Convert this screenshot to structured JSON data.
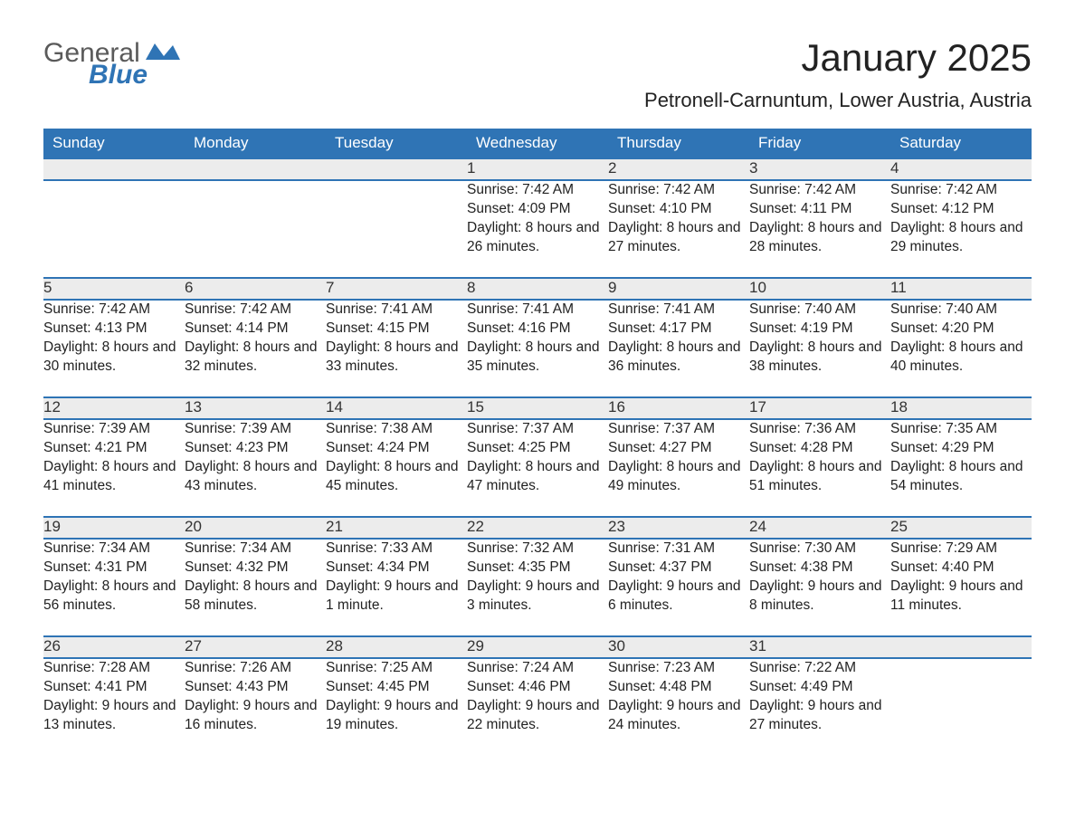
{
  "brand": {
    "general": "General",
    "blue": "Blue"
  },
  "title": "January 2025",
  "location": "Petronell-Carnuntum, Lower Austria, Austria",
  "colors": {
    "header_bg": "#2f74b5",
    "header_fg": "#ffffff",
    "daynum_bg": "#ececec",
    "row_sep": "#2f74b5",
    "text": "#212121",
    "logo_gray": "#5a5a5a",
    "logo_blue": "#2f74b5",
    "page_bg": "#ffffff"
  },
  "day_headers": [
    "Sunday",
    "Monday",
    "Tuesday",
    "Wednesday",
    "Thursday",
    "Friday",
    "Saturday"
  ],
  "weeks": [
    [
      null,
      null,
      null,
      {
        "n": "1",
        "sunrise": "7:42 AM",
        "sunset": "4:09 PM",
        "daylight": "8 hours and 26 minutes."
      },
      {
        "n": "2",
        "sunrise": "7:42 AM",
        "sunset": "4:10 PM",
        "daylight": "8 hours and 27 minutes."
      },
      {
        "n": "3",
        "sunrise": "7:42 AM",
        "sunset": "4:11 PM",
        "daylight": "8 hours and 28 minutes."
      },
      {
        "n": "4",
        "sunrise": "7:42 AM",
        "sunset": "4:12 PM",
        "daylight": "8 hours and 29 minutes."
      }
    ],
    [
      {
        "n": "5",
        "sunrise": "7:42 AM",
        "sunset": "4:13 PM",
        "daylight": "8 hours and 30 minutes."
      },
      {
        "n": "6",
        "sunrise": "7:42 AM",
        "sunset": "4:14 PM",
        "daylight": "8 hours and 32 minutes."
      },
      {
        "n": "7",
        "sunrise": "7:41 AM",
        "sunset": "4:15 PM",
        "daylight": "8 hours and 33 minutes."
      },
      {
        "n": "8",
        "sunrise": "7:41 AM",
        "sunset": "4:16 PM",
        "daylight": "8 hours and 35 minutes."
      },
      {
        "n": "9",
        "sunrise": "7:41 AM",
        "sunset": "4:17 PM",
        "daylight": "8 hours and 36 minutes."
      },
      {
        "n": "10",
        "sunrise": "7:40 AM",
        "sunset": "4:19 PM",
        "daylight": "8 hours and 38 minutes."
      },
      {
        "n": "11",
        "sunrise": "7:40 AM",
        "sunset": "4:20 PM",
        "daylight": "8 hours and 40 minutes."
      }
    ],
    [
      {
        "n": "12",
        "sunrise": "7:39 AM",
        "sunset": "4:21 PM",
        "daylight": "8 hours and 41 minutes."
      },
      {
        "n": "13",
        "sunrise": "7:39 AM",
        "sunset": "4:23 PM",
        "daylight": "8 hours and 43 minutes."
      },
      {
        "n": "14",
        "sunrise": "7:38 AM",
        "sunset": "4:24 PM",
        "daylight": "8 hours and 45 minutes."
      },
      {
        "n": "15",
        "sunrise": "7:37 AM",
        "sunset": "4:25 PM",
        "daylight": "8 hours and 47 minutes."
      },
      {
        "n": "16",
        "sunrise": "7:37 AM",
        "sunset": "4:27 PM",
        "daylight": "8 hours and 49 minutes."
      },
      {
        "n": "17",
        "sunrise": "7:36 AM",
        "sunset": "4:28 PM",
        "daylight": "8 hours and 51 minutes."
      },
      {
        "n": "18",
        "sunrise": "7:35 AM",
        "sunset": "4:29 PM",
        "daylight": "8 hours and 54 minutes."
      }
    ],
    [
      {
        "n": "19",
        "sunrise": "7:34 AM",
        "sunset": "4:31 PM",
        "daylight": "8 hours and 56 minutes."
      },
      {
        "n": "20",
        "sunrise": "7:34 AM",
        "sunset": "4:32 PM",
        "daylight": "8 hours and 58 minutes."
      },
      {
        "n": "21",
        "sunrise": "7:33 AM",
        "sunset": "4:34 PM",
        "daylight": "9 hours and 1 minute."
      },
      {
        "n": "22",
        "sunrise": "7:32 AM",
        "sunset": "4:35 PM",
        "daylight": "9 hours and 3 minutes."
      },
      {
        "n": "23",
        "sunrise": "7:31 AM",
        "sunset": "4:37 PM",
        "daylight": "9 hours and 6 minutes."
      },
      {
        "n": "24",
        "sunrise": "7:30 AM",
        "sunset": "4:38 PM",
        "daylight": "9 hours and 8 minutes."
      },
      {
        "n": "25",
        "sunrise": "7:29 AM",
        "sunset": "4:40 PM",
        "daylight": "9 hours and 11 minutes."
      }
    ],
    [
      {
        "n": "26",
        "sunrise": "7:28 AM",
        "sunset": "4:41 PM",
        "daylight": "9 hours and 13 minutes."
      },
      {
        "n": "27",
        "sunrise": "7:26 AM",
        "sunset": "4:43 PM",
        "daylight": "9 hours and 16 minutes."
      },
      {
        "n": "28",
        "sunrise": "7:25 AM",
        "sunset": "4:45 PM",
        "daylight": "9 hours and 19 minutes."
      },
      {
        "n": "29",
        "sunrise": "7:24 AM",
        "sunset": "4:46 PM",
        "daylight": "9 hours and 22 minutes."
      },
      {
        "n": "30",
        "sunrise": "7:23 AM",
        "sunset": "4:48 PM",
        "daylight": "9 hours and 24 minutes."
      },
      {
        "n": "31",
        "sunrise": "7:22 AM",
        "sunset": "4:49 PM",
        "daylight": "9 hours and 27 minutes."
      },
      null
    ]
  ],
  "labels": {
    "sunrise": "Sunrise: ",
    "sunset": "Sunset: ",
    "daylight": "Daylight: "
  }
}
